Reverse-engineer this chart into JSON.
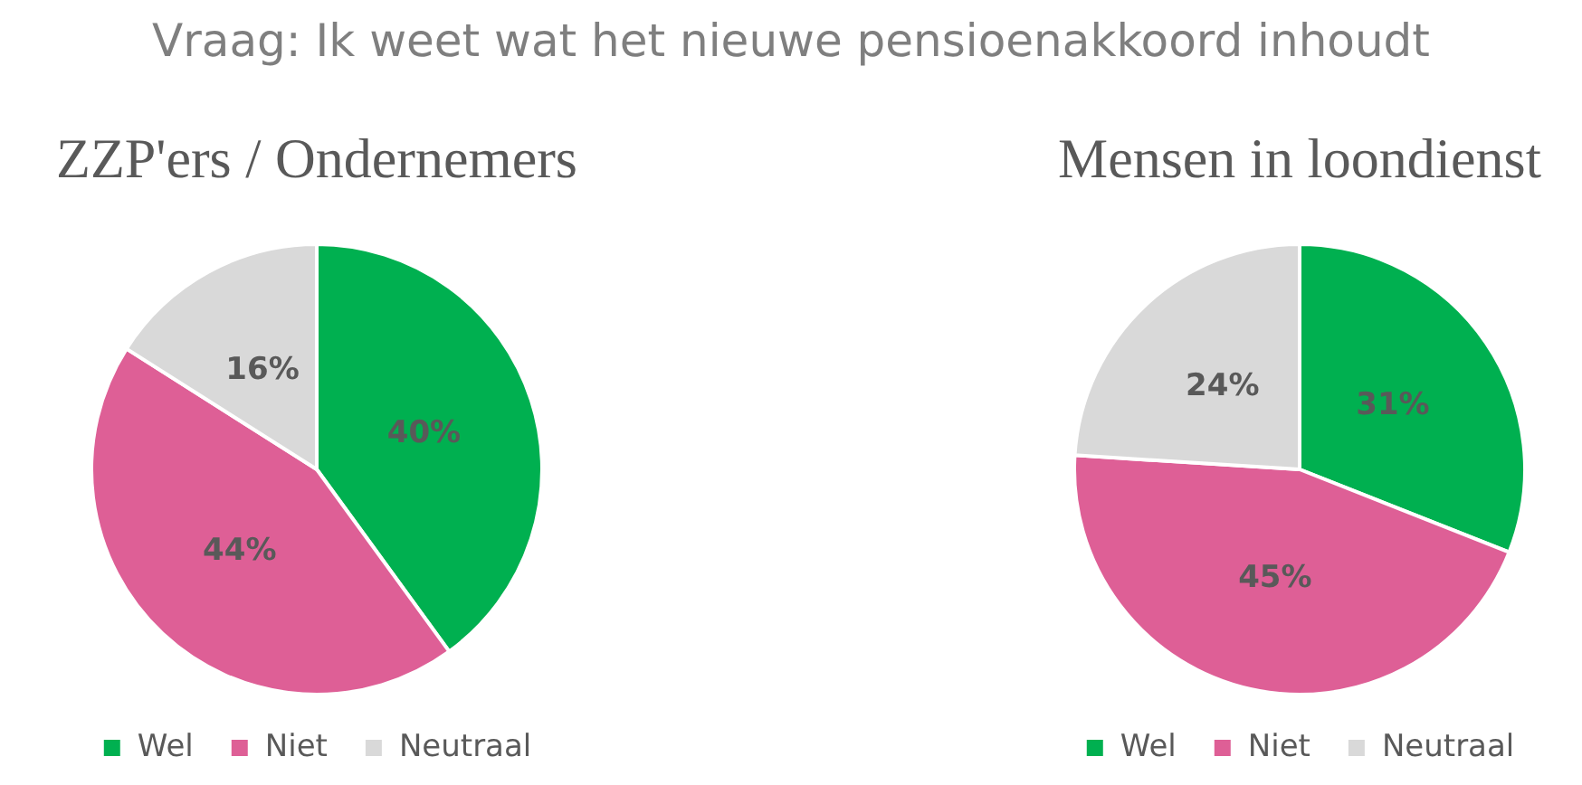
{
  "chart_data": [
    {
      "type": "other",
      "title": "Vraag: Ik weet wat het nieuwe pensioenakkoord inhoudt"
    },
    {
      "type": "pie",
      "title": "ZZP'ers / Ondernemers",
      "categories": [
        "Wel",
        "Niet",
        "Neutraal"
      ],
      "values": [
        40,
        44,
        16
      ],
      "colors": [
        "#00b050",
        "#de5f96",
        "#d9d9d9"
      ],
      "value_labels": [
        "40%",
        "44%",
        "16%"
      ],
      "legend": "bottom"
    },
    {
      "type": "pie",
      "title": "Mensen in loondienst",
      "categories": [
        "Wel",
        "Niet",
        "Neutraal"
      ],
      "values": [
        31,
        45,
        24
      ],
      "colors": [
        "#00b050",
        "#de5f96",
        "#d9d9d9"
      ],
      "value_labels": [
        "31%",
        "45%",
        "24%"
      ],
      "legend": "bottom"
    }
  ]
}
